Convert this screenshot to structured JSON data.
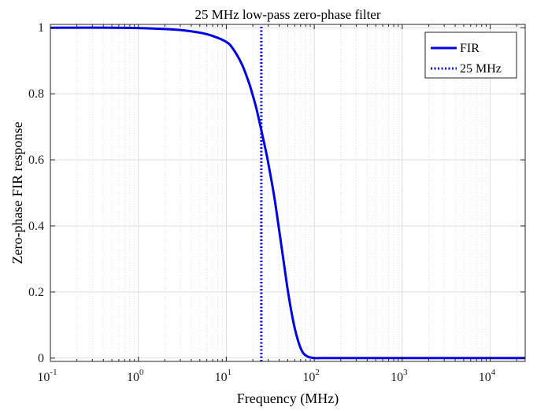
{
  "chart_data": {
    "type": "line",
    "title": "25 MHz low-pass zero-phase filter",
    "xlabel": "Frequency (MHz)",
    "ylabel": "Zero-phase FIR response",
    "xscale": "log",
    "xlim": [
      0.1,
      25000
    ],
    "ylim": [
      -0.01,
      1.01
    ],
    "x_tick_labels": [
      {
        "base": "10",
        "exp": "-1"
      },
      {
        "base": "10",
        "exp": "0"
      },
      {
        "base": "10",
        "exp": "1"
      },
      {
        "base": "10",
        "exp": "2"
      },
      {
        "base": "10",
        "exp": "3"
      },
      {
        "base": "10",
        "exp": "4"
      }
    ],
    "y_ticks": [
      0,
      0.2,
      0.4,
      0.6,
      0.8,
      1
    ],
    "y_tick_labels": [
      "0",
      "0.2",
      "0.4",
      "0.6",
      "0.8",
      "1"
    ],
    "grid": true,
    "legend_position": "top-right",
    "series": [
      {
        "name": "FIR",
        "style": "solid",
        "color": "#0000e6",
        "x": [
          0.1,
          0.5,
          1,
          2,
          3,
          5,
          7,
          10,
          12,
          15,
          18,
          20,
          22,
          25,
          28,
          30,
          35,
          40,
          45,
          50,
          55,
          60,
          65,
          70,
          75,
          80,
          85,
          90,
          95,
          100,
          120,
          200,
          1000,
          10000,
          25000
        ],
        "y": [
          1.0,
          1.0,
          0.999,
          0.996,
          0.993,
          0.985,
          0.975,
          0.957,
          0.935,
          0.89,
          0.835,
          0.795,
          0.755,
          0.69,
          0.63,
          0.59,
          0.49,
          0.385,
          0.29,
          0.205,
          0.14,
          0.09,
          0.055,
          0.03,
          0.015,
          0.008,
          0.004,
          0.002,
          0.001,
          0.0,
          0.0,
          0.0,
          0.0,
          0.0,
          0.0
        ]
      },
      {
        "name": "25 MHz",
        "style": "dotted",
        "color": "#0000e6",
        "x": [
          25,
          25
        ],
        "y": [
          -0.01,
          1.01
        ]
      }
    ]
  }
}
